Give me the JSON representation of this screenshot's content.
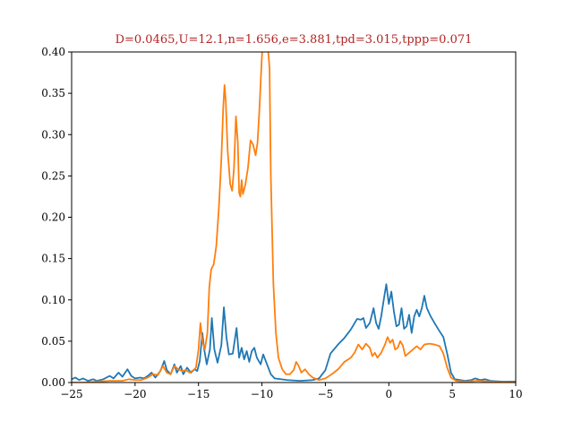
{
  "chart_data": {
    "type": "line",
    "title": "D=0.0465,U=12.1,n=1.656,e=3.881,tpd=3.015,tppp=0.071",
    "title_color": "#b22222",
    "xlabel": "",
    "ylabel": "",
    "xlim": [
      -25,
      10
    ],
    "ylim": [
      0,
      0.4
    ],
    "x_ticks": [
      -25,
      -20,
      -15,
      -10,
      -5,
      0,
      5,
      10
    ],
    "x_tick_labels": [
      "−25",
      "−20",
      "−15",
      "−10",
      "−5",
      "0",
      "5",
      "10"
    ],
    "y_ticks": [
      0,
      0.05,
      0.1,
      0.15,
      0.2,
      0.25,
      0.3,
      0.35,
      0.4
    ],
    "y_tick_labels": [
      "0.00",
      "0.05",
      "0.10",
      "0.15",
      "0.20",
      "0.25",
      "0.30",
      "0.35",
      "0.40"
    ],
    "grid": false,
    "legend": "none",
    "series": [
      {
        "color": "#1f77b4",
        "points": [
          [
            -25,
            0.004
          ],
          [
            -24.7,
            0.006
          ],
          [
            -24.4,
            0.003
          ],
          [
            -24.1,
            0.005
          ],
          [
            -23.7,
            0.002
          ],
          [
            -23.3,
            0.004
          ],
          [
            -23.0,
            0.002
          ],
          [
            -22.5,
            0.004
          ],
          [
            -22.0,
            0.008
          ],
          [
            -21.7,
            0.005
          ],
          [
            -21.3,
            0.012
          ],
          [
            -21.0,
            0.007
          ],
          [
            -20.6,
            0.016
          ],
          [
            -20.3,
            0.008
          ],
          [
            -20.0,
            0.005
          ],
          [
            -19.6,
            0.006
          ],
          [
            -19.3,
            0.005
          ],
          [
            -19.0,
            0.008
          ],
          [
            -18.7,
            0.012
          ],
          [
            -18.4,
            0.006
          ],
          [
            -18.0,
            0.014
          ],
          [
            -17.7,
            0.026
          ],
          [
            -17.5,
            0.015
          ],
          [
            -17.2,
            0.01
          ],
          [
            -16.9,
            0.022
          ],
          [
            -16.7,
            0.012
          ],
          [
            -16.4,
            0.02
          ],
          [
            -16.2,
            0.01
          ],
          [
            -15.9,
            0.018
          ],
          [
            -15.6,
            0.012
          ],
          [
            -15.3,
            0.016
          ],
          [
            -15.1,
            0.014
          ],
          [
            -14.9,
            0.026
          ],
          [
            -14.7,
            0.06
          ],
          [
            -14.55,
            0.04
          ],
          [
            -14.35,
            0.022
          ],
          [
            -14.1,
            0.04
          ],
          [
            -13.95,
            0.078
          ],
          [
            -13.75,
            0.04
          ],
          [
            -13.5,
            0.024
          ],
          [
            -13.2,
            0.045
          ],
          [
            -13.0,
            0.091
          ],
          [
            -12.8,
            0.055
          ],
          [
            -12.6,
            0.034
          ],
          [
            -12.3,
            0.035
          ],
          [
            -12.0,
            0.066
          ],
          [
            -11.8,
            0.03
          ],
          [
            -11.6,
            0.042
          ],
          [
            -11.4,
            0.028
          ],
          [
            -11.2,
            0.038
          ],
          [
            -11.0,
            0.025
          ],
          [
            -10.8,
            0.038
          ],
          [
            -10.6,
            0.042
          ],
          [
            -10.4,
            0.03
          ],
          [
            -10.1,
            0.022
          ],
          [
            -9.9,
            0.034
          ],
          [
            -9.6,
            0.022
          ],
          [
            -9.3,
            0.01
          ],
          [
            -9.0,
            0.005
          ],
          [
            -8.0,
            0.003
          ],
          [
            -7.0,
            0.002
          ],
          [
            -6.0,
            0.003
          ],
          [
            -5.5,
            0.005
          ],
          [
            -5.0,
            0.015
          ],
          [
            -4.6,
            0.035
          ],
          [
            -4.0,
            0.046
          ],
          [
            -3.5,
            0.054
          ],
          [
            -3.0,
            0.064
          ],
          [
            -2.5,
            0.077
          ],
          [
            -2.2,
            0.076
          ],
          [
            -2.0,
            0.078
          ],
          [
            -1.8,
            0.066
          ],
          [
            -1.5,
            0.072
          ],
          [
            -1.2,
            0.09
          ],
          [
            -1.0,
            0.072
          ],
          [
            -0.8,
            0.065
          ],
          [
            -0.6,
            0.08
          ],
          [
            -0.4,
            0.1
          ],
          [
            -0.2,
            0.119
          ],
          [
            0.0,
            0.095
          ],
          [
            0.2,
            0.11
          ],
          [
            0.4,
            0.086
          ],
          [
            0.6,
            0.068
          ],
          [
            0.8,
            0.07
          ],
          [
            1.0,
            0.09
          ],
          [
            1.2,
            0.065
          ],
          [
            1.4,
            0.068
          ],
          [
            1.6,
            0.082
          ],
          [
            1.8,
            0.06
          ],
          [
            2.0,
            0.08
          ],
          [
            2.2,
            0.088
          ],
          [
            2.4,
            0.08
          ],
          [
            2.6,
            0.09
          ],
          [
            2.8,
            0.105
          ],
          [
            3.0,
            0.09
          ],
          [
            3.3,
            0.08
          ],
          [
            3.6,
            0.072
          ],
          [
            4.0,
            0.062
          ],
          [
            4.3,
            0.055
          ],
          [
            4.6,
            0.035
          ],
          [
            4.9,
            0.012
          ],
          [
            5.2,
            0.004
          ],
          [
            6.0,
            0.002
          ],
          [
            6.5,
            0.003
          ],
          [
            6.8,
            0.005
          ],
          [
            7.2,
            0.003
          ],
          [
            7.6,
            0.004
          ],
          [
            8.0,
            0.002
          ],
          [
            9.0,
            0.001
          ],
          [
            10.0,
            0.001
          ]
        ]
      },
      {
        "color": "#ff7f0e",
        "points": [
          [
            -25,
            0.0
          ],
          [
            -24.0,
            0.0
          ],
          [
            -23.0,
            0.001
          ],
          [
            -22.0,
            0.002
          ],
          [
            -21.0,
            0.002
          ],
          [
            -20.5,
            0.004
          ],
          [
            -20.0,
            0.003
          ],
          [
            -19.5,
            0.003
          ],
          [
            -19.0,
            0.006
          ],
          [
            -18.6,
            0.01
          ],
          [
            -18.2,
            0.009
          ],
          [
            -17.8,
            0.02
          ],
          [
            -17.5,
            0.012
          ],
          [
            -17.2,
            0.01
          ],
          [
            -16.9,
            0.02
          ],
          [
            -16.6,
            0.016
          ],
          [
            -16.3,
            0.014
          ],
          [
            -16.0,
            0.015
          ],
          [
            -15.7,
            0.012
          ],
          [
            -15.4,
            0.015
          ],
          [
            -15.2,
            0.018
          ],
          [
            -15.0,
            0.04
          ],
          [
            -14.85,
            0.072
          ],
          [
            -14.7,
            0.05
          ],
          [
            -14.5,
            0.04
          ],
          [
            -14.3,
            0.06
          ],
          [
            -14.15,
            0.115
          ],
          [
            -14.0,
            0.137
          ],
          [
            -13.8,
            0.143
          ],
          [
            -13.6,
            0.165
          ],
          [
            -13.4,
            0.21
          ],
          [
            -13.2,
            0.27
          ],
          [
            -13.05,
            0.333
          ],
          [
            -12.95,
            0.36
          ],
          [
            -12.85,
            0.34
          ],
          [
            -12.7,
            0.28
          ],
          [
            -12.5,
            0.24
          ],
          [
            -12.35,
            0.232
          ],
          [
            -12.2,
            0.26
          ],
          [
            -12.05,
            0.322
          ],
          [
            -11.9,
            0.29
          ],
          [
            -11.8,
            0.23
          ],
          [
            -11.7,
            0.225
          ],
          [
            -11.6,
            0.245
          ],
          [
            -11.5,
            0.228
          ],
          [
            -11.3,
            0.24
          ],
          [
            -11.1,
            0.26
          ],
          [
            -10.9,
            0.293
          ],
          [
            -10.7,
            0.288
          ],
          [
            -10.5,
            0.275
          ],
          [
            -10.35,
            0.29
          ],
          [
            -10.2,
            0.33
          ],
          [
            -10.05,
            0.38
          ],
          [
            -9.95,
            0.41
          ],
          [
            -9.6,
            0.42
          ],
          [
            -9.4,
            0.38
          ],
          [
            -9.3,
            0.25
          ],
          [
            -9.1,
            0.12
          ],
          [
            -8.9,
            0.06
          ],
          [
            -8.7,
            0.03
          ],
          [
            -8.4,
            0.016
          ],
          [
            -8.1,
            0.01
          ],
          [
            -7.8,
            0.01
          ],
          [
            -7.5,
            0.015
          ],
          [
            -7.3,
            0.025
          ],
          [
            -7.1,
            0.02
          ],
          [
            -6.9,
            0.012
          ],
          [
            -6.6,
            0.016
          ],
          [
            -6.3,
            0.01
          ],
          [
            -6.0,
            0.006
          ],
          [
            -5.5,
            0.003
          ],
          [
            -5.0,
            0.005
          ],
          [
            -4.5,
            0.01
          ],
          [
            -4.0,
            0.016
          ],
          [
            -3.5,
            0.025
          ],
          [
            -3.0,
            0.03
          ],
          [
            -2.7,
            0.036
          ],
          [
            -2.4,
            0.046
          ],
          [
            -2.1,
            0.04
          ],
          [
            -1.8,
            0.047
          ],
          [
            -1.5,
            0.042
          ],
          [
            -1.3,
            0.032
          ],
          [
            -1.1,
            0.036
          ],
          [
            -0.9,
            0.03
          ],
          [
            -0.6,
            0.036
          ],
          [
            -0.3,
            0.046
          ],
          [
            -0.1,
            0.055
          ],
          [
            0.1,
            0.048
          ],
          [
            0.3,
            0.052
          ],
          [
            0.5,
            0.04
          ],
          [
            0.7,
            0.042
          ],
          [
            0.9,
            0.05
          ],
          [
            1.1,
            0.045
          ],
          [
            1.3,
            0.032
          ],
          [
            1.6,
            0.036
          ],
          [
            1.9,
            0.04
          ],
          [
            2.2,
            0.044
          ],
          [
            2.5,
            0.04
          ],
          [
            2.8,
            0.046
          ],
          [
            3.2,
            0.047
          ],
          [
            3.6,
            0.046
          ],
          [
            4.0,
            0.044
          ],
          [
            4.3,
            0.035
          ],
          [
            4.6,
            0.018
          ],
          [
            4.9,
            0.006
          ],
          [
            5.3,
            0.002
          ],
          [
            6.0,
            0.001
          ],
          [
            7.0,
            0.002
          ],
          [
            8.0,
            0.001
          ],
          [
            10.0,
            0.0
          ]
        ]
      }
    ]
  }
}
